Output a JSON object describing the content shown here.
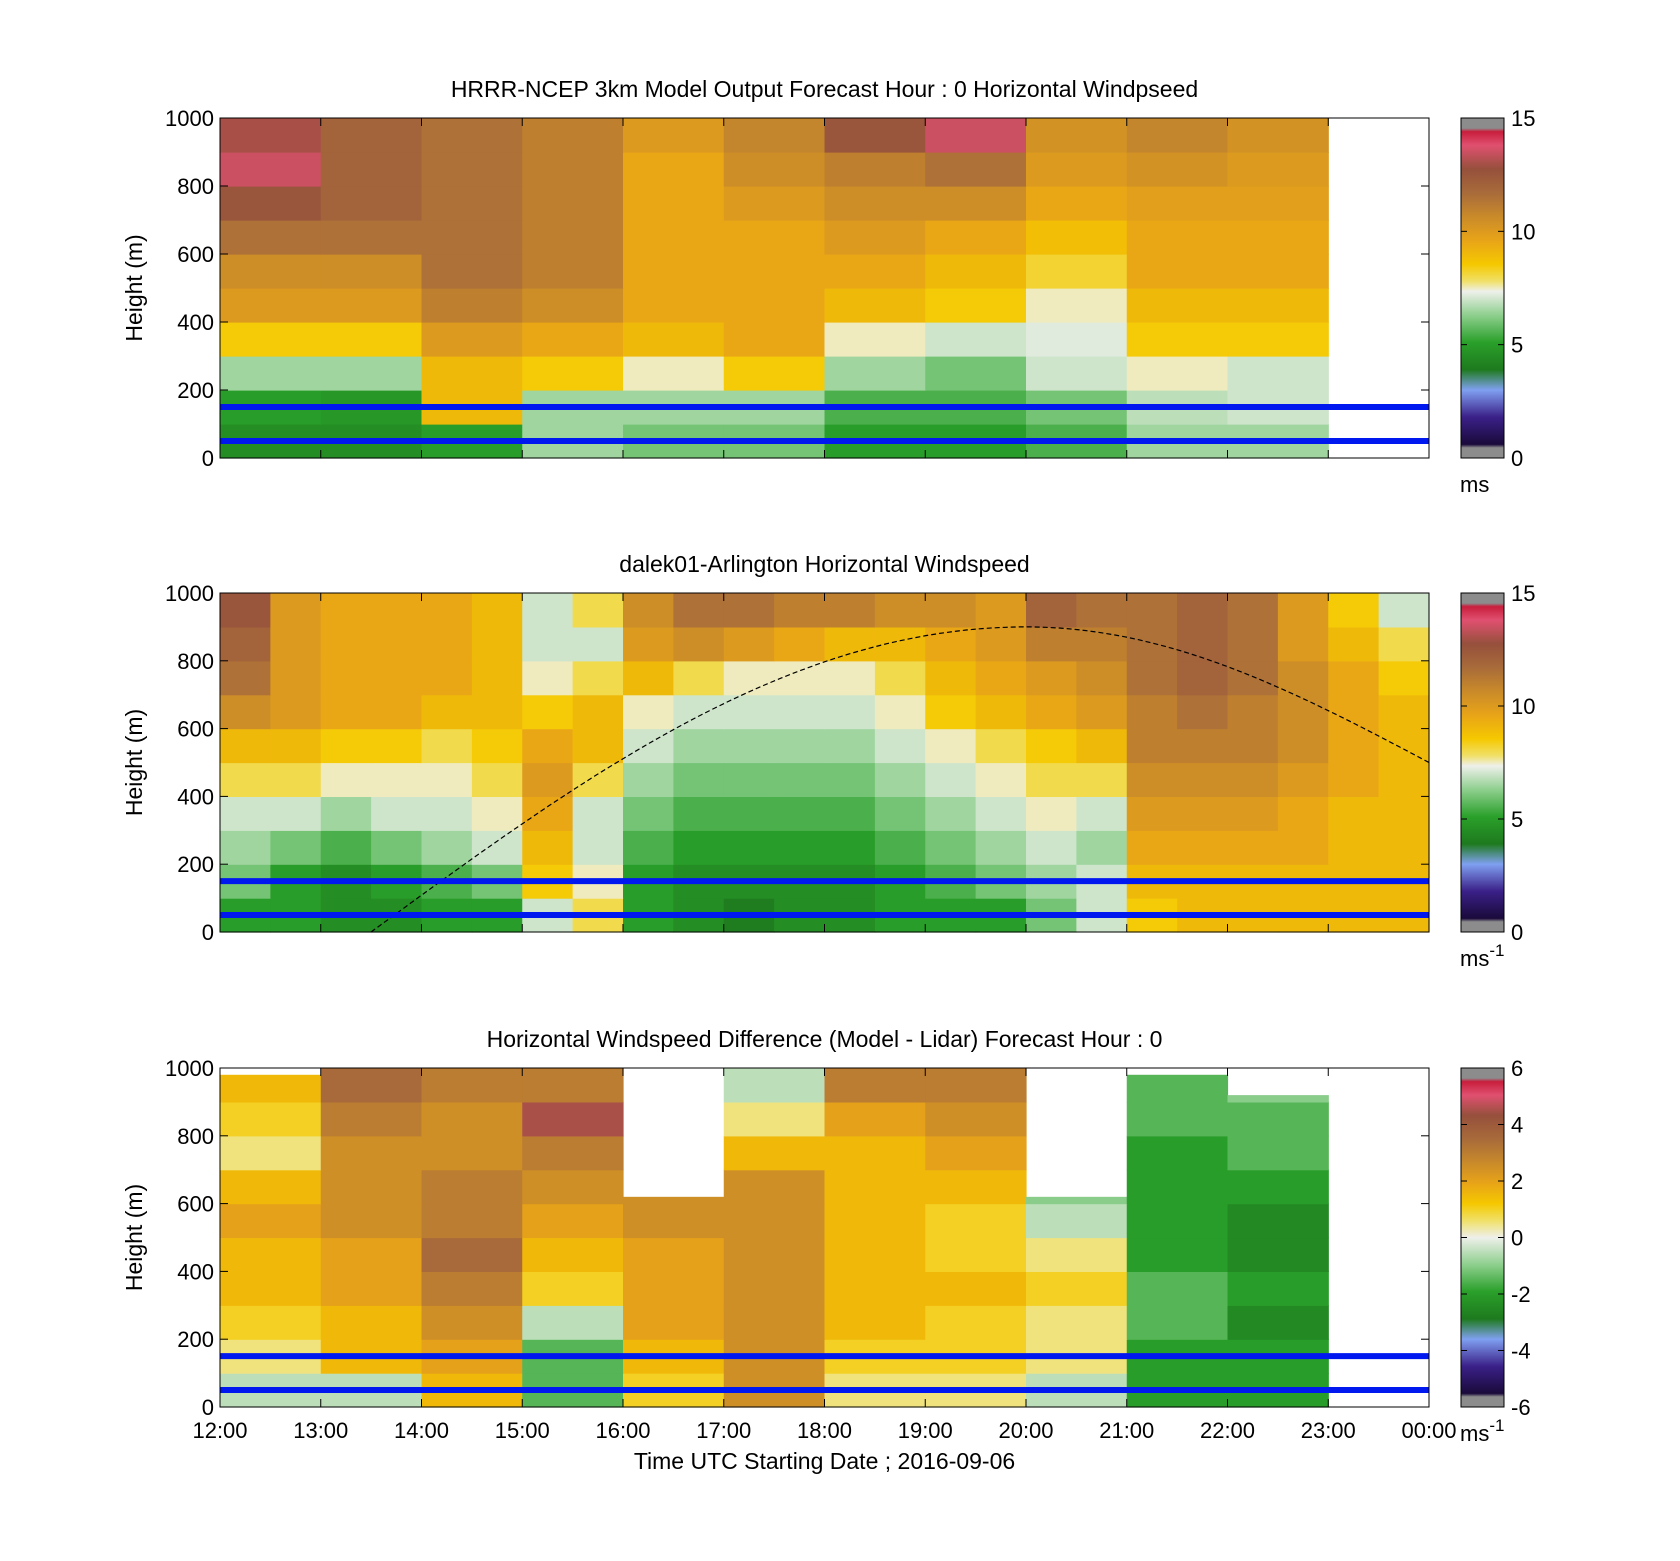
{
  "chart_data": [
    {
      "type": "heatmap",
      "title": "HRRR-NCEP 3km Model Output   Forecast Hour : 0 Horizontal Windpseed",
      "ylabel": "Height (m)",
      "xlabel": "",
      "ylim": [
        0,
        1000
      ],
      "yticks": [
        "0",
        "200",
        "400",
        "600",
        "800",
        "1000"
      ],
      "xlim_hours": [
        12,
        24
      ],
      "x_tick_labels": [],
      "colorbar": {
        "ticks": [
          "0",
          "5",
          "10",
          "15"
        ],
        "range": [
          0,
          15
        ],
        "unit": "ms"
      },
      "reference_heights_m": [
        50,
        150
      ],
      "data_hours": [
        12,
        13,
        14,
        15,
        16,
        17,
        18,
        19,
        20,
        21,
        22
      ],
      "height_bins_m": [
        0,
        100,
        200,
        300,
        400,
        500,
        600,
        700,
        800,
        900
      ],
      "values": [
        [
          4.5,
          4.5,
          5.0,
          6.5,
          6.0,
          6.0,
          5.0,
          5.0,
          5.5,
          6.5,
          6.5
        ],
        [
          5.0,
          4.8,
          9.0,
          6.5,
          6.5,
          6.5,
          5.5,
          5.5,
          6.0,
          6.8,
          7.0
        ],
        [
          6.5,
          6.5,
          9.0,
          8.5,
          7.5,
          8.5,
          6.5,
          6.0,
          7.0,
          7.5,
          7.0
        ],
        [
          8.5,
          8.5,
          10.0,
          9.5,
          9.0,
          9.5,
          7.5,
          7.0,
          7.2,
          8.5,
          8.5
        ],
        [
          10.0,
          10.0,
          11.0,
          10.5,
          9.5,
          9.5,
          9.0,
          8.5,
          7.5,
          9.0,
          9.0
        ],
        [
          10.5,
          10.5,
          11.5,
          11.0,
          9.5,
          9.5,
          9.5,
          9.0,
          8.2,
          9.5,
          9.5
        ],
        [
          11.5,
          11.5,
          11.5,
          11.0,
          9.5,
          9.5,
          10.0,
          9.5,
          8.8,
          9.5,
          9.5
        ],
        [
          12.5,
          12.0,
          11.5,
          11.0,
          9.5,
          10.0,
          10.5,
          10.5,
          9.5,
          9.8,
          9.8
        ],
        [
          13.5,
          12.0,
          11.5,
          11.0,
          9.5,
          10.5,
          11.0,
          11.5,
          10.0,
          10.3,
          10.0
        ],
        [
          13.0,
          12.0,
          11.5,
          11.0,
          10.0,
          10.8,
          12.5,
          13.5,
          10.3,
          10.8,
          10.3
        ]
      ]
    },
    {
      "type": "heatmap",
      "title": "dalek01-Arlington  Horizontal Windspeed",
      "ylabel": "Height (m)",
      "xlabel": "",
      "ylim": [
        0,
        1000
      ],
      "yticks": [
        "0",
        "200",
        "400",
        "600",
        "800",
        "1000"
      ],
      "xlim_hours": [
        12,
        24
      ],
      "x_tick_labels": [],
      "colorbar": {
        "ticks": [
          "0",
          "5",
          "10",
          "15"
        ],
        "range": [
          0,
          15
        ],
        "unit": "ms",
        "unit_exponent": "-1"
      },
      "reference_heights_m": [
        50,
        150
      ],
      "data_hours": [
        12.0,
        12.5,
        13.0,
        13.5,
        14.0,
        14.5,
        15.0,
        15.5,
        16.0,
        16.5,
        17.0,
        17.5,
        18.0,
        18.5,
        19.0,
        19.5,
        20.0,
        20.5,
        21.0,
        21.5,
        22.0,
        22.5,
        23.0,
        23.5
      ],
      "height_bins_m": [
        0,
        100,
        200,
        300,
        400,
        500,
        600,
        700,
        800,
        900
      ],
      "values": [
        [
          5,
          5,
          4.5,
          4.5,
          5,
          5,
          7,
          8,
          5,
          4.5,
          4,
          4.5,
          4.5,
          5,
          5,
          5,
          6,
          7,
          8.5,
          9,
          9,
          9,
          9,
          9
        ],
        [
          6,
          5,
          4.5,
          5,
          5.5,
          6,
          8.5,
          7.5,
          5,
          4.5,
          4.5,
          4.5,
          4.5,
          5,
          5.5,
          6,
          6.5,
          7,
          9,
          9,
          9,
          9,
          9,
          9
        ],
        [
          6.5,
          6,
          5.5,
          6,
          6.5,
          7,
          9,
          7,
          5.5,
          5,
          5,
          5,
          5,
          5.5,
          6,
          6.5,
          7,
          6.5,
          9.5,
          9.5,
          9.5,
          9.5,
          9,
          9
        ],
        [
          7,
          7,
          6.5,
          7,
          7,
          7.5,
          9.5,
          7,
          6,
          5.5,
          5.5,
          5.5,
          5.5,
          6,
          6.5,
          7,
          7.5,
          7,
          10,
          10,
          10,
          9.5,
          9,
          9
        ],
        [
          8,
          8,
          7.5,
          7.5,
          7.5,
          8,
          10,
          8,
          6.5,
          6,
          6,
          6,
          6,
          6.5,
          7,
          7.5,
          8,
          8,
          10.5,
          10.5,
          10.5,
          10,
          9.5,
          9
        ],
        [
          9,
          9,
          8.5,
          8.5,
          8,
          8.5,
          9.5,
          9,
          7,
          6.5,
          6.5,
          6.5,
          6.5,
          7,
          7.5,
          8,
          8.5,
          9,
          11,
          11,
          11,
          10.5,
          9.5,
          9
        ],
        [
          10.5,
          10,
          9.5,
          9.5,
          9,
          9,
          8.5,
          9,
          7.5,
          7,
          7,
          7,
          7,
          7.5,
          8.5,
          9,
          9.5,
          10,
          11,
          11.5,
          11,
          10.5,
          9.5,
          9
        ],
        [
          11.5,
          10,
          9.5,
          9.5,
          9.5,
          9,
          7.5,
          8,
          9,
          8,
          7.5,
          7.5,
          7.5,
          8,
          9,
          9.5,
          10,
          10.5,
          11.5,
          12,
          11.5,
          10.5,
          9.5,
          8.5
        ],
        [
          12,
          10,
          9.5,
          9.5,
          9.5,
          9,
          7,
          7,
          10,
          10.5,
          10,
          9.5,
          9,
          9,
          9.5,
          10,
          11,
          11,
          11.5,
          12,
          11.5,
          10,
          9,
          8
        ],
        [
          12.5,
          10,
          9.5,
          9.5,
          9.5,
          9,
          7,
          8,
          10.5,
          11.5,
          11.5,
          11,
          11,
          10.5,
          10.5,
          10,
          12,
          11.5,
          11.5,
          12,
          11.5,
          10,
          8.5,
          7
        ]
      ],
      "overlay": {
        "type": "dashed-curve",
        "peak_hour": 20,
        "peak_height_m": 900,
        "start_hour": 13.5,
        "start_height_m": 0,
        "end_hour": 24,
        "end_height_m": 500
      }
    },
    {
      "type": "heatmap",
      "title": "Horizontal Windspeed Difference (Model - Lidar) Forecast Hour : 0",
      "ylabel": "Height (m)",
      "xlabel": "Time UTC  Starting Date ; 2016-09-06",
      "ylim": [
        0,
        1000
      ],
      "yticks": [
        "0",
        "200",
        "400",
        "600",
        "800",
        "1000"
      ],
      "xlim_hours": [
        12,
        24
      ],
      "x_tick_labels": [
        "12:00",
        "13:00",
        "14:00",
        "15:00",
        "16:00",
        "17:00",
        "18:00",
        "19:00",
        "20:00",
        "21:00",
        "22:00",
        "23:00",
        "00:00"
      ],
      "colorbar": {
        "ticks": [
          "-6",
          "-4",
          "-2",
          "0",
          "2",
          "4",
          "6"
        ],
        "range": [
          -6,
          6
        ],
        "unit": "ms",
        "unit_exponent": "-1"
      },
      "reference_heights_m": [
        50,
        150
      ],
      "data_hours": [
        12,
        13,
        14,
        15,
        16,
        17,
        18,
        19,
        20,
        21,
        22
      ],
      "height_bins_m": [
        0,
        100,
        200,
        300,
        400,
        500,
        600,
        700,
        800,
        900
      ],
      "top_m": [
        980,
        1000,
        1000,
        1000,
        620,
        1000,
        1000,
        1000,
        620,
        980,
        920
      ],
      "values": [
        [
          -0.5,
          -0.5,
          1.5,
          -1.5,
          1.0,
          2.5,
          0.5,
          0.5,
          -0.5,
          -2.0,
          -2.0
        ],
        [
          0.5,
          1.5,
          2.0,
          -1.5,
          1.5,
          2.5,
          1.0,
          1.0,
          0.5,
          -2.0,
          -2.0
        ],
        [
          1.0,
          1.5,
          2.5,
          -0.5,
          2.0,
          2.5,
          1.5,
          1.0,
          0.5,
          -1.5,
          -2.5
        ],
        [
          1.5,
          2.0,
          3.0,
          1.0,
          2.0,
          2.5,
          1.5,
          1.5,
          1.0,
          -1.5,
          -2.0
        ],
        [
          1.5,
          2.0,
          3.5,
          1.5,
          2.0,
          2.5,
          1.5,
          1.0,
          0.5,
          -2.0,
          -2.5
        ],
        [
          2.0,
          2.5,
          3.0,
          2.0,
          2.5,
          2.5,
          1.5,
          1.0,
          -0.5,
          -2.0,
          -2.5
        ],
        [
          1.5,
          2.5,
          3.0,
          2.5,
          2.5,
          2.5,
          1.5,
          1.5,
          -1.0,
          -2.0,
          -2.0
        ],
        [
          0.5,
          2.5,
          2.5,
          3.0,
          2.5,
          1.5,
          1.5,
          2.0,
          -1.0,
          -2.0,
          -1.5
        ],
        [
          1.0,
          3.0,
          2.5,
          4.5,
          2.5,
          0.5,
          2.0,
          2.5,
          -1.0,
          -1.5,
          -1.5
        ],
        [
          1.5,
          3.5,
          3.0,
          3.0,
          2.5,
          -0.5,
          3.0,
          3.0,
          -1.0,
          -1.5,
          -1.0
        ]
      ]
    }
  ]
}
